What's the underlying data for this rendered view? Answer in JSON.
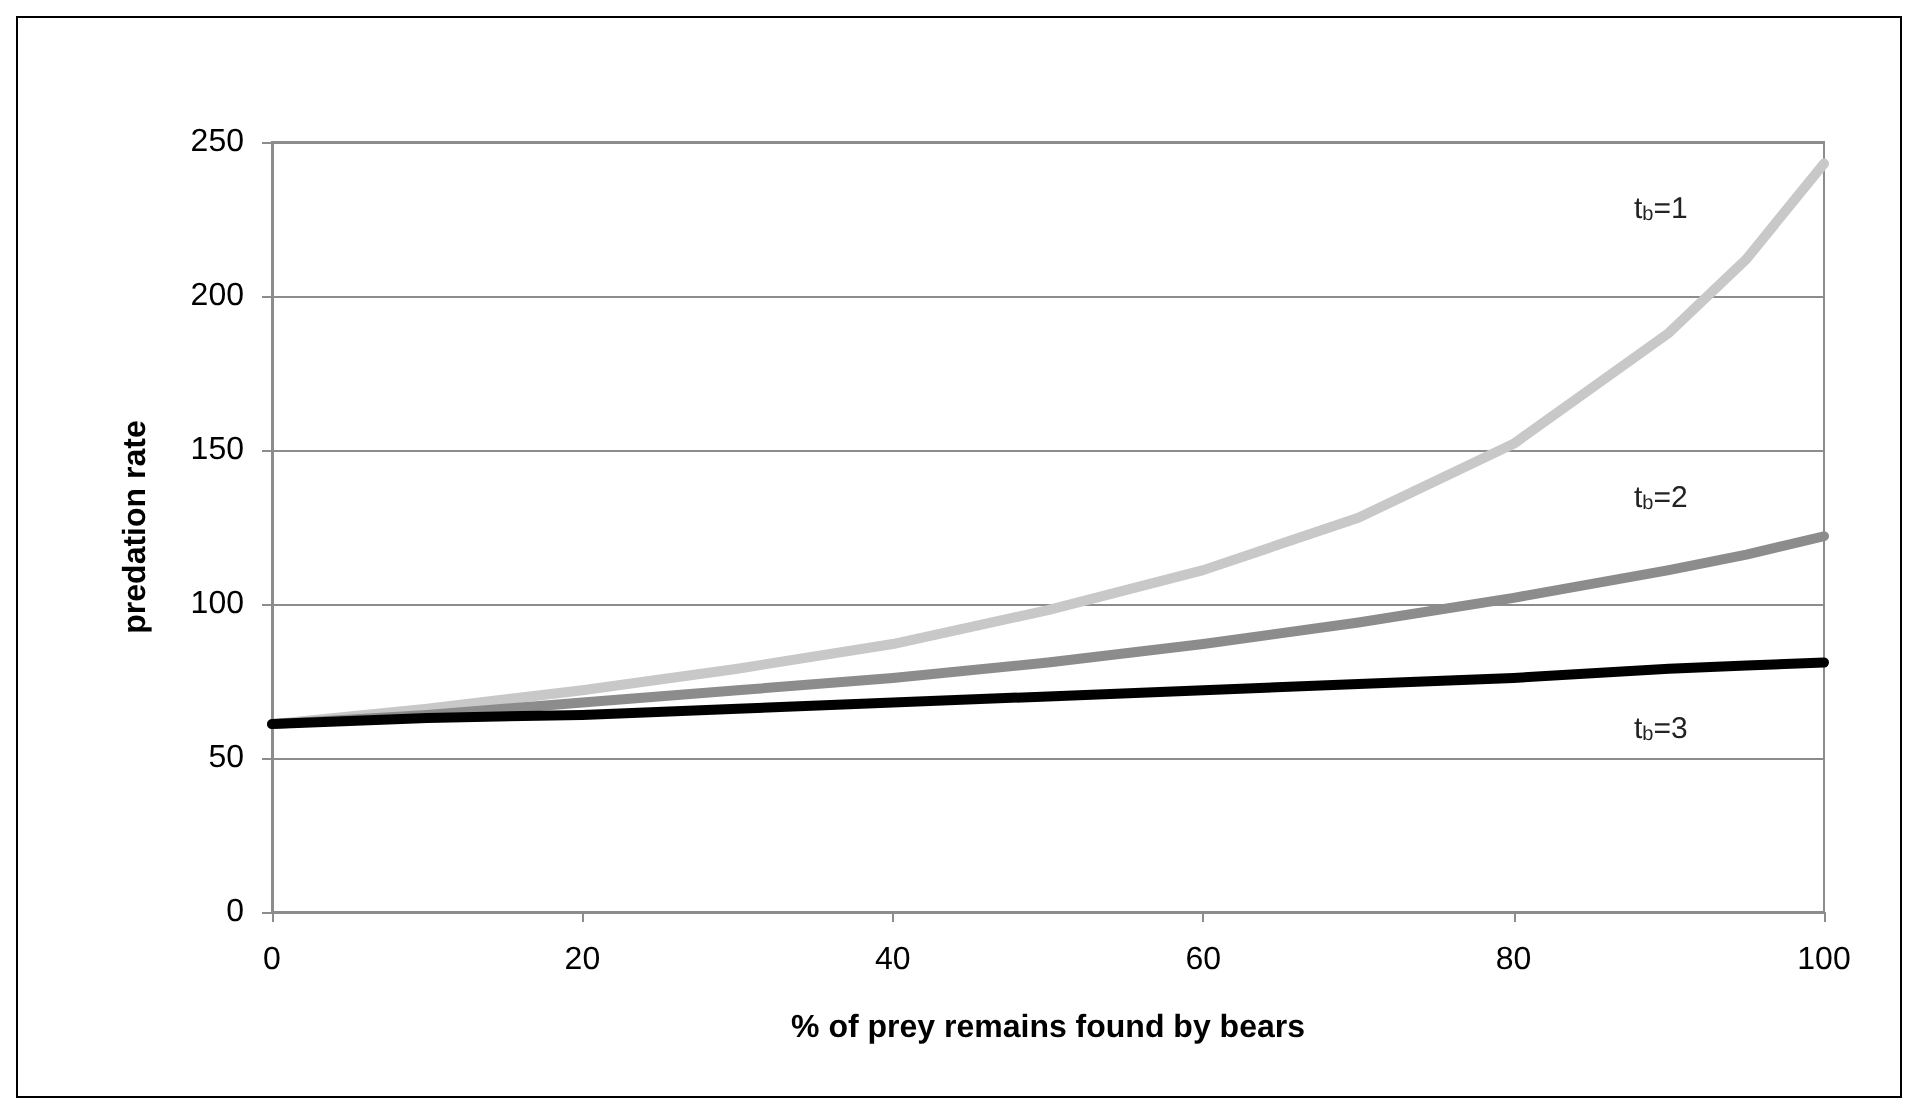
{
  "chart_data": {
    "type": "line",
    "xlabel": "% of prey remains found by bears",
    "ylabel": "predation rate",
    "x": [
      0,
      10,
      20,
      30,
      40,
      50,
      60,
      70,
      80,
      90,
      95,
      100
    ],
    "xlim": [
      0,
      100
    ],
    "xticks": [
      0,
      20,
      40,
      60,
      80,
      100
    ],
    "ylim": [
      0,
      250
    ],
    "yticks": [
      0,
      50,
      100,
      150,
      200,
      250
    ],
    "grid": "y",
    "marker": "none",
    "line_style": "solid",
    "series": [
      {
        "name": "t$_{b}$=1",
        "color": "#c8c8c8",
        "values": [
          61,
          66,
          72,
          79,
          87,
          98,
          111,
          128,
          152,
          188,
          212,
          243
        ]
      },
      {
        "name": "t$_{b}$=2",
        "color": "#8c8c8c",
        "values": [
          61,
          64,
          68,
          72,
          76,
          81,
          87,
          94,
          102,
          111,
          116,
          122
        ]
      },
      {
        "name": "t$_{b}$=3",
        "color": "#000000",
        "values": [
          61,
          63,
          64,
          66,
          68,
          70,
          72,
          74,
          76,
          79,
          80,
          81
        ]
      }
    ]
  }
}
